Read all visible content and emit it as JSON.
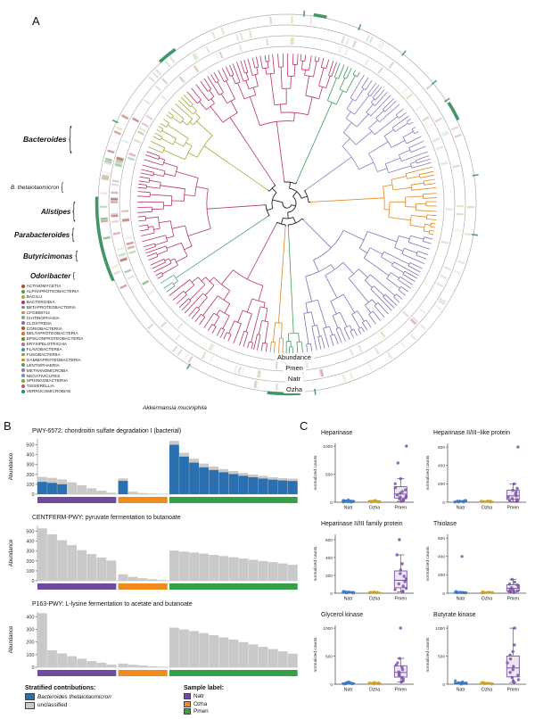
{
  "labels": {
    "A": "A",
    "B": "B",
    "C": "C"
  },
  "panelA": {
    "ring_labels": [
      "Abundance",
      "Pmen",
      "Natr",
      "Ozha"
    ],
    "taxa": [
      {
        "name": "Bacteroides"
      },
      {
        "name": "B. thetaiotaomicron"
      },
      {
        "name": "Alistipes"
      },
      {
        "name": "Parabacteroides"
      },
      {
        "name": "Butyricimonas"
      },
      {
        "name": "Odoribacter"
      }
    ],
    "bottom_taxon": "Akkermansia muciniphila",
    "legend": [
      {
        "label": "ACTINOMYCETIA",
        "color": "#b04a3a"
      },
      {
        "label": "ALPHAPROTEOBACTERIA",
        "color": "#5b9e48"
      },
      {
        "label": "BACILLI",
        "color": "#a3a93c"
      },
      {
        "label": "BACTEROIDIA",
        "color": "#b8336a"
      },
      {
        "label": "BETAPROTEOBACTERIA",
        "color": "#4f9e8e"
      },
      {
        "label": "CFGB59744",
        "color": "#c98a3d"
      },
      {
        "label": "CHITINOPHAGIA",
        "color": "#7fb069"
      },
      {
        "label": "CLOSTRIDIA",
        "color": "#8172b3"
      },
      {
        "label": "CORIOBACTERIIA",
        "color": "#a6611a"
      },
      {
        "label": "DELTAPROTEOBACTERIA",
        "color": "#d96c3c"
      },
      {
        "label": "EPSILONPROTEOBACTERIA",
        "color": "#6b8e23"
      },
      {
        "label": "ERYSIPELOTRICHIA",
        "color": "#c46a9a"
      },
      {
        "label": "FLAVOBACTERIIA",
        "color": "#4a90b8"
      },
      {
        "label": "FUSOBACTERIIA",
        "color": "#8a9a5b"
      },
      {
        "label": "GAMMAPROTEOBACTERIA",
        "color": "#e0851f"
      },
      {
        "label": "LENTISPHAERIA",
        "color": "#4ca64c"
      },
      {
        "label": "METHANOMICROBIA",
        "color": "#9a6fb5"
      },
      {
        "label": "NEGATIVICUTES",
        "color": "#56a3a6"
      },
      {
        "label": "SPHINGOBACTERIIA",
        "color": "#89a02c"
      },
      {
        "label": "TISSIERELLIA",
        "color": "#c05c7e"
      },
      {
        "label": "VERRUCOMICROBIAE",
        "color": "#2e8b57"
      }
    ],
    "tree_sectors": [
      {
        "span": 45,
        "color": "#b8336a"
      },
      {
        "span": 10,
        "color": "#3aa05a"
      },
      {
        "span": 45,
        "color": "#8b7cc0"
      },
      {
        "span": 28,
        "color": "#e0851f"
      },
      {
        "span": 70,
        "color": "#8172b3"
      },
      {
        "span": 8,
        "color": "#3aa05a"
      },
      {
        "span": 6,
        "color": "#e0851f"
      },
      {
        "span": 46,
        "color": "#b8336a"
      },
      {
        "span": 6,
        "color": "#4f9e8e"
      },
      {
        "span": 52,
        "color": "#b8336a"
      },
      {
        "span": 26,
        "color": "#a3a93c"
      },
      {
        "span": 18,
        "color": "#b8336a"
      }
    ]
  },
  "panelB": {
    "legend_contrib_title": "Stratified contributions:",
    "legend_contrib": [
      {
        "label": "Bacteroides thetaiotaomicron",
        "color": "#2a6fb0",
        "italic": true
      },
      {
        "label": "unclassified",
        "color": "#c9c9c9",
        "italic": false
      }
    ],
    "legend_sample_title": "Sample label:",
    "legend_sample": [
      {
        "label": "Natr",
        "color": "#6e4b9e"
      },
      {
        "label": "Ozha",
        "color": "#f08c1e"
      },
      {
        "label": "Pmen",
        "color": "#35a045"
      }
    ]
  },
  "chart_data": [
    {
      "id": "pwy6572",
      "type": "stacked-bar",
      "title": "PWY-6572: chondroitin sulfate degradation I (bacterial)",
      "ylabel": "Abundance",
      "yticks": [
        0,
        100,
        200,
        300,
        400,
        500
      ],
      "ylim": [
        0,
        560
      ],
      "series_colors": {
        "bacteroides_thetaiotaomicron": "#2a6fb0",
        "unclassified": "#c9c9c9"
      },
      "groups": [
        {
          "label": "Natr",
          "color": "#6e4b9e",
          "totals": [
            175,
            165,
            150,
            120,
            90,
            60,
            35,
            15
          ],
          "blue": [
            125,
            115,
            100,
            0,
            0,
            0,
            0,
            0
          ]
        },
        {
          "label": "Ozha",
          "color": "#f08c1e",
          "totals": [
            160,
            25,
            12,
            6,
            3
          ],
          "blue": [
            135,
            0,
            0,
            0,
            0
          ]
        },
        {
          "label": "Pmen",
          "color": "#35a045",
          "totals": [
            540,
            420,
            360,
            310,
            280,
            255,
            235,
            215,
            200,
            185,
            172,
            163,
            158
          ],
          "blue": [
            500,
            380,
            320,
            272,
            245,
            222,
            204,
            186,
            172,
            158,
            147,
            139,
            134
          ]
        }
      ]
    },
    {
      "id": "centferm",
      "type": "stacked-bar",
      "title": "CENTFERM-PWY: pyruvate fermentation to butanoate",
      "ylabel": "Abundance",
      "yticks": [
        0,
        100,
        200,
        300,
        400,
        500
      ],
      "ylim": [
        0,
        560
      ],
      "series_colors": {
        "unclassified": "#c9c9c9"
      },
      "groups": [
        {
          "label": "Natr",
          "color": "#6e4b9e",
          "totals": [
            530,
            470,
            410,
            360,
            310,
            270,
            235,
            205
          ],
          "blue": [
            0,
            0,
            0,
            0,
            0,
            0,
            0,
            0
          ]
        },
        {
          "label": "Ozha",
          "color": "#f08c1e",
          "totals": [
            65,
            40,
            25,
            15,
            8
          ],
          "blue": [
            0,
            0,
            0,
            0,
            0
          ]
        },
        {
          "label": "Pmen",
          "color": "#35a045",
          "totals": [
            305,
            295,
            285,
            275,
            262,
            250,
            238,
            225,
            212,
            200,
            188,
            175,
            162
          ],
          "blue": [
            0,
            0,
            0,
            0,
            0,
            0,
            0,
            0,
            0,
            0,
            0,
            0,
            0
          ]
        }
      ]
    },
    {
      "id": "p163",
      "type": "stacked-bar",
      "title": "P163-PWY: L-lysine fermentation to acetate and butanoate",
      "ylabel": "Abundance",
      "yticks": [
        0,
        100,
        200,
        300,
        400
      ],
      "ylim": [
        0,
        440
      ],
      "series_colors": {
        "unclassified": "#c9c9c9"
      },
      "groups": [
        {
          "label": "Natr",
          "color": "#6e4b9e",
          "totals": [
            430,
            135,
            110,
            88,
            68,
            50,
            36,
            22
          ],
          "blue": [
            0,
            0,
            0,
            0,
            0,
            0,
            0,
            0
          ]
        },
        {
          "label": "Ozha",
          "color": "#f08c1e",
          "totals": [
            30,
            20,
            14,
            8,
            4
          ],
          "blue": [
            0,
            0,
            0,
            0,
            0
          ]
        },
        {
          "label": "Pmen",
          "color": "#35a045",
          "totals": [
            315,
            300,
            288,
            272,
            255,
            238,
            220,
            200,
            182,
            163,
            145,
            126,
            108
          ],
          "blue": [
            0,
            0,
            0,
            0,
            0,
            0,
            0,
            0,
            0,
            0,
            0,
            0,
            0
          ]
        }
      ]
    },
    {
      "id": "heparinase",
      "type": "scatter",
      "title": "Heparinase",
      "ylabel": "normalized counts",
      "categories": [
        "Natr",
        "Ozha",
        "Pmen"
      ],
      "colors": [
        "#3d79c4",
        "#c9a227",
        "#7d54a5"
      ],
      "yticks": [
        0,
        500,
        1000
      ],
      "ylim": [
        0,
        1050
      ],
      "values": [
        [
          3,
          6,
          10,
          15,
          22,
          30,
          8,
          12,
          18,
          5,
          26,
          40
        ],
        [
          4,
          8,
          12,
          18,
          25,
          6,
          15,
          30,
          10
        ],
        [
          15,
          40,
          80,
          130,
          190,
          260,
          330,
          420,
          90,
          160,
          220,
          60,
          1000,
          700,
          35,
          110
        ]
      ]
    },
    {
      "id": "heparinase-like",
      "type": "scatter",
      "title": "Heparinase II/III−like protein",
      "ylabel": "normalized counts",
      "categories": [
        "Natr",
        "Ozha",
        "Pmen"
      ],
      "colors": [
        "#3d79c4",
        "#c9a227",
        "#7d54a5"
      ],
      "yticks": [
        0,
        200,
        400,
        600
      ],
      "ylim": [
        0,
        640
      ],
      "values": [
        [
          2,
          5,
          8,
          12,
          18,
          4,
          10,
          15,
          6
        ],
        [
          3,
          6,
          10,
          14,
          5,
          8,
          12
        ],
        [
          8,
          20,
          40,
          70,
          110,
          150,
          55,
          90,
          30,
          600,
          200,
          130,
          15
        ]
      ]
    },
    {
      "id": "heparinase-family",
      "type": "scatter",
      "title": "Heparinase II/III family protein",
      "ylabel": "normalized counts",
      "categories": [
        "Natr",
        "Ozha",
        "Pmen"
      ],
      "colors": [
        "#3d79c4",
        "#c9a227",
        "#7d54a5"
      ],
      "yticks": [
        0,
        200,
        400,
        600
      ],
      "ylim": [
        0,
        660
      ],
      "values": [
        [
          3,
          6,
          10,
          15,
          5,
          8,
          12,
          20
        ],
        [
          4,
          7,
          11,
          16,
          6,
          9
        ],
        [
          15,
          40,
          80,
          130,
          190,
          260,
          330,
          430,
          600,
          55,
          105,
          160,
          220,
          25
        ]
      ]
    },
    {
      "id": "thiolase",
      "type": "scatter",
      "title": "Thiolase",
      "ylabel": "normalized counts",
      "categories": [
        "Natr",
        "Ozha",
        "Pmen"
      ],
      "colors": [
        "#3d79c4",
        "#c9a227",
        "#7d54a5"
      ],
      "yticks": [
        0,
        200,
        400,
        600
      ],
      "ylim": [
        0,
        640
      ],
      "values": [
        [
          3,
          6,
          10,
          14,
          400,
          5,
          8,
          18
        ],
        [
          4,
          7,
          11,
          5,
          9,
          15
        ],
        [
          8,
          18,
          35,
          60,
          90,
          120,
          45,
          25,
          70,
          150,
          12,
          100
        ]
      ]
    },
    {
      "id": "glycerol-kinase",
      "type": "scatter",
      "title": "Glycerol kinase",
      "ylabel": "normalized counts",
      "categories": [
        "Natr",
        "Ozha",
        "Pmen"
      ],
      "colors": [
        "#3d79c4",
        "#c9a227",
        "#7d54a5"
      ],
      "yticks": [
        0,
        500,
        1000
      ],
      "ylim": [
        0,
        1050
      ],
      "values": [
        [
          5,
          10,
          18,
          28,
          40,
          8,
          15,
          22
        ],
        [
          6,
          12,
          20,
          30,
          10,
          16,
          25
        ],
        [
          40,
          90,
          150,
          220,
          300,
          380,
          460,
          120,
          200,
          260,
          60,
          1000,
          340,
          170
        ]
      ]
    },
    {
      "id": "butyrate-kinase",
      "type": "scatter",
      "title": "Butyrate kinase",
      "ylabel": "normalized counts",
      "categories": [
        "Natr",
        "Ozha",
        "Pmen"
      ],
      "colors": [
        "#3d79c4",
        "#c9a227",
        "#7d54a5"
      ],
      "yticks": [
        0,
        500,
        1000
      ],
      "ylim": [
        0,
        1050
      ],
      "values": [
        [
          4,
          9,
          15,
          25,
          40,
          60,
          12,
          20
        ],
        [
          5,
          10,
          18,
          30,
          8,
          14,
          22
        ],
        [
          30,
          80,
          160,
          260,
          380,
          520,
          700,
          1000,
          120,
          210,
          320,
          450,
          60,
          580
        ]
      ]
    }
  ]
}
